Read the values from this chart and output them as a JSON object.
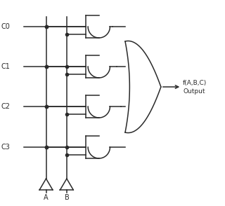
{
  "bg_color": "#ffffff",
  "line_color": "#2a2a2a",
  "lw": 1.1,
  "fig_w": 3.2,
  "fig_h": 2.94,
  "dpi": 100,
  "inputs": [
    "C0",
    "C1",
    "C2",
    "C3"
  ],
  "output_label1": "f(A,B,C)",
  "output_label2": "Output",
  "label_A": "A",
  "label_B": "B"
}
